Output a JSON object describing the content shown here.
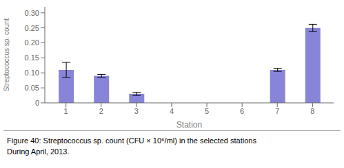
{
  "chart_data": {
    "type": "bar",
    "title": "Figure 40: Streptococcus sp. count (CFU × 10⁶/ml) in the selected stations",
    "subtitle": "During April, 2013.",
    "x": [
      1,
      2,
      3,
      7,
      8
    ],
    "values": [
      0.11,
      0.09,
      0.03,
      0.11,
      0.25
    ],
    "errors": [
      0.025,
      0.005,
      0.005,
      0.005,
      0.012
    ],
    "color": "#8884d8",
    "xlabel": "Station",
    "ylabel": "Streptococcus sp. count",
    "xlim": [
      0.4,
      8.6
    ],
    "xticks": [
      1,
      2,
      3,
      4,
      5,
      6,
      7,
      8
    ],
    "ylim": [
      0,
      0.32
    ],
    "yticks": [
      0,
      0.05,
      {
        "value": 0.1,
        "label": "0.10"
      },
      0.15,
      {
        "value": 0.2,
        "label": "0.20"
      },
      0.25,
      {
        "value": 0.3,
        "label": "0.30"
      }
    ],
    "grid": false
  }
}
